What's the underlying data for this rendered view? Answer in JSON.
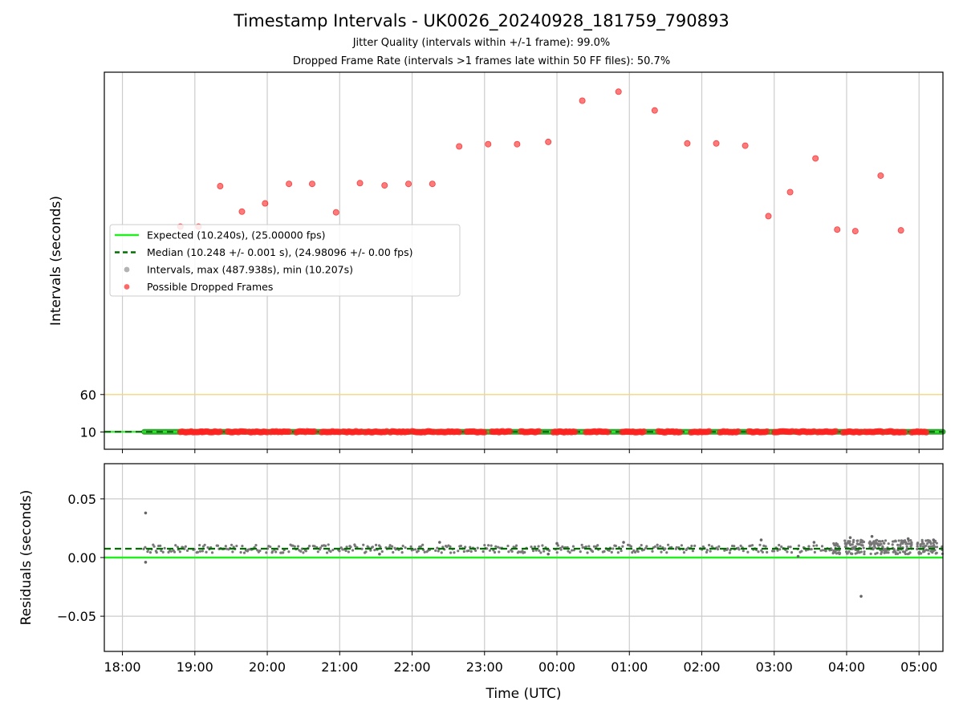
{
  "chart_data": [
    {
      "type": "scatter",
      "title": "Timestamp Intervals - UK0026_20240928_181759_790893",
      "subtitle_1": "Jitter Quality (intervals within +/-1 frame): 99.0%",
      "subtitle_2": "Dropped Frame Rate (intervals >1 frames late within 50 FF files): 50.7%",
      "ylabel": "Intervals (seconds)",
      "xlim_hours_since_1800": [
        -0.25,
        11.33
      ],
      "ylim": [
        -13,
        490
      ],
      "yticks": [
        {
          "value": 10,
          "label": "10"
        },
        {
          "value": 60,
          "label": "60"
        }
      ],
      "xticks": [
        {
          "value": 0,
          "label": "18:00"
        },
        {
          "value": 1,
          "label": "19:00"
        },
        {
          "value": 2,
          "label": "20:00"
        },
        {
          "value": 3,
          "label": "21:00"
        },
        {
          "value": 4,
          "label": "22:00"
        },
        {
          "value": 5,
          "label": "23:00"
        },
        {
          "value": 6,
          "label": "00:00"
        },
        {
          "value": 7,
          "label": "01:00"
        },
        {
          "value": 8,
          "label": "02:00"
        },
        {
          "value": 9,
          "label": "03:00"
        },
        {
          "value": 10,
          "label": "04:00"
        },
        {
          "value": 11,
          "label": "05:00"
        }
      ],
      "grid": true,
      "legend": {
        "placement": "center-left",
        "entries": [
          {
            "label": "Expected (10.240s), (25.00000 fps)",
            "kind": "line",
            "color": "#22ee22"
          },
          {
            "label": "Median (10.248 +/- 0.001 s), (24.98096 +/- 0.00 fps)",
            "kind": "dashed",
            "color": "#007000"
          },
          {
            "label": "Intervals, max (487.938s), min (10.207s)",
            "kind": "dot",
            "color": "#999999"
          },
          {
            "label": "Possible Dropped Frames",
            "kind": "dot",
            "color": "#ff3333"
          }
        ]
      },
      "reference_lines": [
        {
          "name": "Expected",
          "y": 10.24,
          "color": "#22ee22"
        },
        {
          "name": "Median",
          "y": 10.248,
          "color": "#007000"
        },
        {
          "name": "threshold",
          "y": 60,
          "color": "#f5d77a"
        }
      ],
      "data_start_hour": 0.3,
      "data_end_hour": 11.33,
      "dropped_frames_high": [
        {
          "x": 0.8,
          "y": 284
        },
        {
          "x": 1.05,
          "y": 284
        },
        {
          "x": 1.35,
          "y": 338
        },
        {
          "x": 1.65,
          "y": 304
        },
        {
          "x": 1.97,
          "y": 315
        },
        {
          "x": 2.3,
          "y": 341
        },
        {
          "x": 2.62,
          "y": 341
        },
        {
          "x": 2.95,
          "y": 303
        },
        {
          "x": 3.28,
          "y": 342
        },
        {
          "x": 3.62,
          "y": 339
        },
        {
          "x": 3.95,
          "y": 341
        },
        {
          "x": 4.28,
          "y": 341
        },
        {
          "x": 4.65,
          "y": 391
        },
        {
          "x": 5.05,
          "y": 394
        },
        {
          "x": 5.45,
          "y": 394
        },
        {
          "x": 5.88,
          "y": 397
        },
        {
          "x": 6.35,
          "y": 452
        },
        {
          "x": 6.85,
          "y": 464
        },
        {
          "x": 7.35,
          "y": 439
        },
        {
          "x": 7.8,
          "y": 395
        },
        {
          "x": 8.2,
          "y": 395
        },
        {
          "x": 8.6,
          "y": 392
        },
        {
          "x": 8.92,
          "y": 298
        },
        {
          "x": 9.22,
          "y": 330
        },
        {
          "x": 9.57,
          "y": 375
        },
        {
          "x": 9.87,
          "y": 280
        },
        {
          "x": 10.12,
          "y": 278
        },
        {
          "x": 10.47,
          "y": 352
        },
        {
          "x": 10.75,
          "y": 279
        }
      ],
      "dropped_frame_clusters": [
        {
          "from": 0.8,
          "to": 1.1
        },
        {
          "from": 1.1,
          "to": 1.35
        },
        {
          "from": 1.45,
          "to": 1.7
        },
        {
          "from": 1.75,
          "to": 2.0
        },
        {
          "from": 2.05,
          "to": 2.3
        },
        {
          "from": 2.4,
          "to": 2.65
        },
        {
          "from": 2.75,
          "to": 3.0
        },
        {
          "from": 3.05,
          "to": 3.3
        },
        {
          "from": 3.35,
          "to": 3.65
        },
        {
          "from": 3.7,
          "to": 3.95
        },
        {
          "from": 4.0,
          "to": 4.3
        },
        {
          "from": 4.35,
          "to": 4.65
        },
        {
          "from": 4.75,
          "to": 5.0
        },
        {
          "from": 5.1,
          "to": 5.35
        },
        {
          "from": 5.5,
          "to": 5.75
        },
        {
          "from": 5.95,
          "to": 6.25
        },
        {
          "from": 6.4,
          "to": 6.7
        },
        {
          "from": 6.9,
          "to": 7.2
        },
        {
          "from": 7.4,
          "to": 7.7
        },
        {
          "from": 7.85,
          "to": 8.1
        },
        {
          "from": 8.25,
          "to": 8.5
        },
        {
          "from": 8.65,
          "to": 8.9
        },
        {
          "from": 9.0,
          "to": 9.25
        },
        {
          "from": 9.3,
          "to": 9.55
        },
        {
          "from": 9.6,
          "to": 9.85
        },
        {
          "from": 9.95,
          "to": 10.2
        },
        {
          "from": 10.25,
          "to": 10.5
        },
        {
          "from": 10.55,
          "to": 10.8
        },
        {
          "from": 10.9,
          "to": 11.1
        }
      ]
    },
    {
      "type": "scatter",
      "xlabel": "Time (UTC)",
      "ylabel": "Residuals (seconds)",
      "ylim": [
        -0.08,
        0.08
      ],
      "yticks": [
        {
          "value": 0.05,
          "label": "0.05"
        },
        {
          "value": 0.0,
          "label": "0.00"
        },
        {
          "value": -0.05,
          "label": "−0.05"
        }
      ],
      "grid": true,
      "expected_residual": 0.0,
      "median_residual": 0.0075,
      "typical_band": [
        0.004,
        0.011
      ],
      "outliers": [
        {
          "x": 0.32,
          "y": 0.038
        },
        {
          "x": 0.32,
          "y": -0.004
        },
        {
          "x": 10.2,
          "y": -0.033
        },
        {
          "x": 8.82,
          "y": 0.015
        },
        {
          "x": 4.38,
          "y": 0.013
        },
        {
          "x": 6.0,
          "y": 0.012
        },
        {
          "x": 6.92,
          "y": 0.013
        },
        {
          "x": 9.55,
          "y": 0.013
        },
        {
          "x": 10.05,
          "y": 0.017
        },
        {
          "x": 10.35,
          "y": 0.018
        },
        {
          "x": 10.85,
          "y": 0.016
        },
        {
          "x": 11.2,
          "y": 0.015
        },
        {
          "x": 5.88,
          "y": 0.003
        },
        {
          "x": 3.55,
          "y": 0.003
        },
        {
          "x": 9.33,
          "y": 0.001
        }
      ]
    }
  ]
}
